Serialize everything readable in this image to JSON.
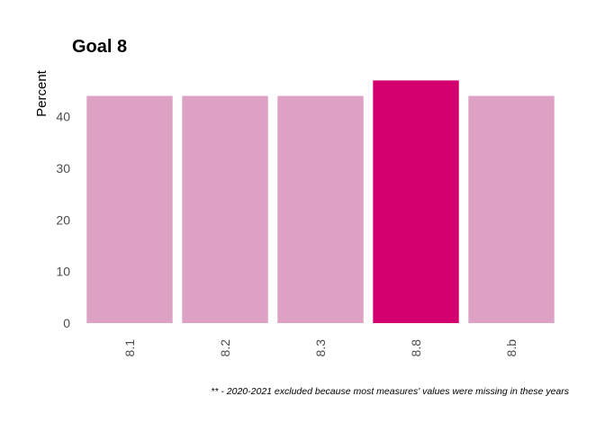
{
  "chart_data": {
    "type": "bar",
    "title": "Goal  8",
    "xlabel": "",
    "ylabel": "Percent",
    "categories": [
      "8.1",
      "8.2",
      "8.3",
      "8.8",
      "8.b"
    ],
    "values": [
      44,
      44,
      44,
      47,
      44
    ],
    "highlight": [
      false,
      false,
      false,
      true,
      false
    ],
    "yticks": [
      0,
      10,
      20,
      30,
      40
    ],
    "ylim": [
      0,
      47
    ],
    "grid": false,
    "legend": "none",
    "colors": {
      "bar": "#dda1c4",
      "highlight": "#d4006f"
    },
    "footnote": "** - 2020-2021 excluded because most measures' values were missing in these years"
  }
}
